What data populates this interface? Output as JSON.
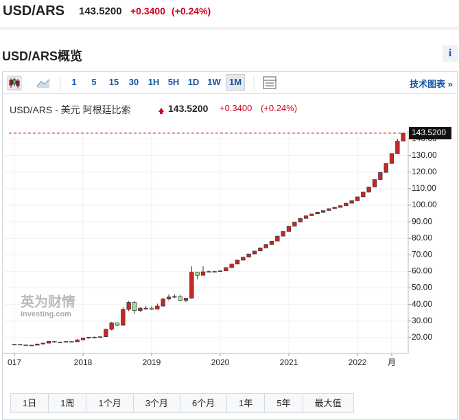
{
  "header": {
    "symbol": "USD/ARS",
    "price": "143.5200",
    "change": "+0.3400",
    "change_pct": "(+0.24%)"
  },
  "section_title": "USD/ARS概览",
  "info_button": "i",
  "toolbar": {
    "intervals": [
      "1",
      "5",
      "15",
      "30",
      "1H",
      "5H",
      "1D",
      "1W",
      "1M"
    ],
    "active": "1M",
    "link": "技术图表 »"
  },
  "watermark": {
    "brand": "英为财情",
    "site": "Investing.com"
  },
  "ranges": [
    "1日",
    "1周",
    "1个月",
    "3个月",
    "6个月",
    "1年",
    "5年",
    "最大值"
  ],
  "chart_data": {
    "type": "candlestick",
    "title": "USD/ARS - 美元 阿根廷比索",
    "up_color": "#c62828",
    "down_color": "#9ee08a",
    "grid": true,
    "last_price": {
      "value": 143.52,
      "label": "143.5200"
    },
    "xlim": [
      -2.16,
      68.88
    ],
    "xticks": [
      {
        "value": 0,
        "label": "017"
      },
      {
        "value": 12,
        "label": "2018"
      },
      {
        "value": 24,
        "label": "2019"
      },
      {
        "value": 36,
        "label": "2020"
      },
      {
        "value": 48,
        "label": "2021"
      },
      {
        "value": 60,
        "label": "2022"
      },
      {
        "value": 66,
        "label": "月"
      }
    ],
    "ylim": [
      10.4,
      145.2
    ],
    "yticks": [
      {
        "value": 20,
        "label": "20.00"
      },
      {
        "value": 30,
        "label": "30.00"
      },
      {
        "value": 40,
        "label": "40.00"
      },
      {
        "value": 50,
        "label": "50.00"
      },
      {
        "value": 60,
        "label": "60.00"
      },
      {
        "value": 70,
        "label": "70.00"
      },
      {
        "value": 80,
        "label": "80.00"
      },
      {
        "value": 90,
        "label": "90.00"
      },
      {
        "value": 100,
        "label": "100.00"
      },
      {
        "value": 110,
        "label": "110.00"
      },
      {
        "value": 120,
        "label": "120.00"
      },
      {
        "value": 130,
        "label": "130.00"
      },
      {
        "value": 140,
        "label": "140.00"
      }
    ],
    "open": [
      15.8,
      15.9,
      15.5,
      15.4,
      15.4,
      16.1,
      16.6,
      17.7,
      17.3,
      17.3,
      17.6,
      17.4,
      18.6,
      19.7,
      20.2,
      20.2,
      20.5,
      25.0,
      28.9,
      27.4,
      37.0,
      41.3,
      36.3,
      37.7,
      37.7,
      37.2,
      39.0,
      43.3,
      44.5,
      44.8,
      42.5,
      43.8,
      59.5,
      57.6,
      59.7,
      59.9,
      59.9,
      60.3,
      62.3,
      64.4,
      66.8,
      68.6,
      70.5,
      72.3,
      74.2,
      76.2,
      78.3,
      81.3,
      84.1,
      87.3,
      89.8,
      92.0,
      93.6,
      94.7,
      95.7,
      96.8,
      97.9,
      98.7,
      99.7,
      101.2,
      102.7,
      105.0,
      107.9,
      111.0,
      115.5,
      119.8,
      125.2,
      131.2,
      138.7
    ],
    "high": [
      16.1,
      16.0,
      15.7,
      15.6,
      16.3,
      17.1,
      18.0,
      17.9,
      17.6,
      17.8,
      17.8,
      19.0,
      19.9,
      20.4,
      20.6,
      20.6,
      25.5,
      29.4,
      29.0,
      38.3,
      42.1,
      41.9,
      38.5,
      39.2,
      38.9,
      40.5,
      44.1,
      46.0,
      46.1,
      45.8,
      44.0,
      63.0,
      59.7,
      63.0,
      60.5,
      60.3,
      60.6,
      62.4,
      64.5,
      67.0,
      68.7,
      70.6,
      72.4,
      74.3,
      76.3,
      78.4,
      81.4,
      84.2,
      87.4,
      89.9,
      92.1,
      93.7,
      94.8,
      95.8,
      96.9,
      98.0,
      98.8,
      99.8,
      101.3,
      102.8,
      105.1,
      108.0,
      111.1,
      115.6,
      119.9,
      125.3,
      131.3,
      140.0,
      143.9
    ],
    "low": [
      15.5,
      15.3,
      15.2,
      15.2,
      15.3,
      15.9,
      16.5,
      16.9,
      16.9,
      17.1,
      17.2,
      17.3,
      18.4,
      19.3,
      19.9,
      20.1,
      20.3,
      24.3,
      27.0,
      27.2,
      35.9,
      34.4,
      35.5,
      36.8,
      36.6,
      37.0,
      38.7,
      42.4,
      44.0,
      41.9,
      41.5,
      43.5,
      55.1,
      57.6,
      59.6,
      59.7,
      59.8,
      60.2,
      62.2,
      64.3,
      66.7,
      68.5,
      70.4,
      72.2,
      74.1,
      76.1,
      78.2,
      81.2,
      84.0,
      87.2,
      89.7,
      91.9,
      93.5,
      94.6,
      95.6,
      96.7,
      97.8,
      98.6,
      99.6,
      101.1,
      102.6,
      104.9,
      107.8,
      110.9,
      115.4,
      119.7,
      125.1,
      131.1,
      138.6
    ],
    "close": [
      15.9,
      15.5,
      15.4,
      15.4,
      16.1,
      16.6,
      17.7,
      17.3,
      17.3,
      17.6,
      17.4,
      18.6,
      19.7,
      20.2,
      20.2,
      20.5,
      25.0,
      28.9,
      27.4,
      37.0,
      41.3,
      36.3,
      37.7,
      37.7,
      37.2,
      39.0,
      43.3,
      44.5,
      44.8,
      42.5,
      43.8,
      59.5,
      57.6,
      59.7,
      59.9,
      59.9,
      60.3,
      62.3,
      64.4,
      66.8,
      68.6,
      70.5,
      72.3,
      74.2,
      76.2,
      78.3,
      81.3,
      84.1,
      87.3,
      89.8,
      92.0,
      93.6,
      94.7,
      95.7,
      96.8,
      97.9,
      98.7,
      99.7,
      101.2,
      102.7,
      105.0,
      107.9,
      111.0,
      115.5,
      119.8,
      125.2,
      131.2,
      138.7,
      143.52
    ]
  }
}
